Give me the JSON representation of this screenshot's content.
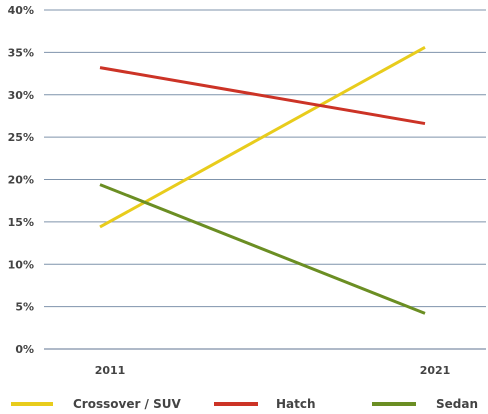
{
  "chart_data": {
    "type": "line",
    "title": "",
    "xlabel": "",
    "ylabel": "",
    "categories": [
      "2011",
      "2021"
    ],
    "ylim": [
      0,
      40
    ],
    "y_ticks": [
      "0%",
      "5%",
      "10%",
      "15%",
      "20%",
      "25%",
      "30%",
      "35%",
      "40%"
    ],
    "grid": true,
    "legend_position": "bottom",
    "series": [
      {
        "name": "Crossover / SUV",
        "color": "#e8cc1c",
        "values": [
          14.4,
          35.6
        ]
      },
      {
        "name": "Hatch",
        "color": "#cc3326",
        "values": [
          33.2,
          26.6
        ]
      },
      {
        "name": "Sedan",
        "color": "#6b8e23",
        "values": [
          19.4,
          4.2
        ]
      }
    ]
  }
}
